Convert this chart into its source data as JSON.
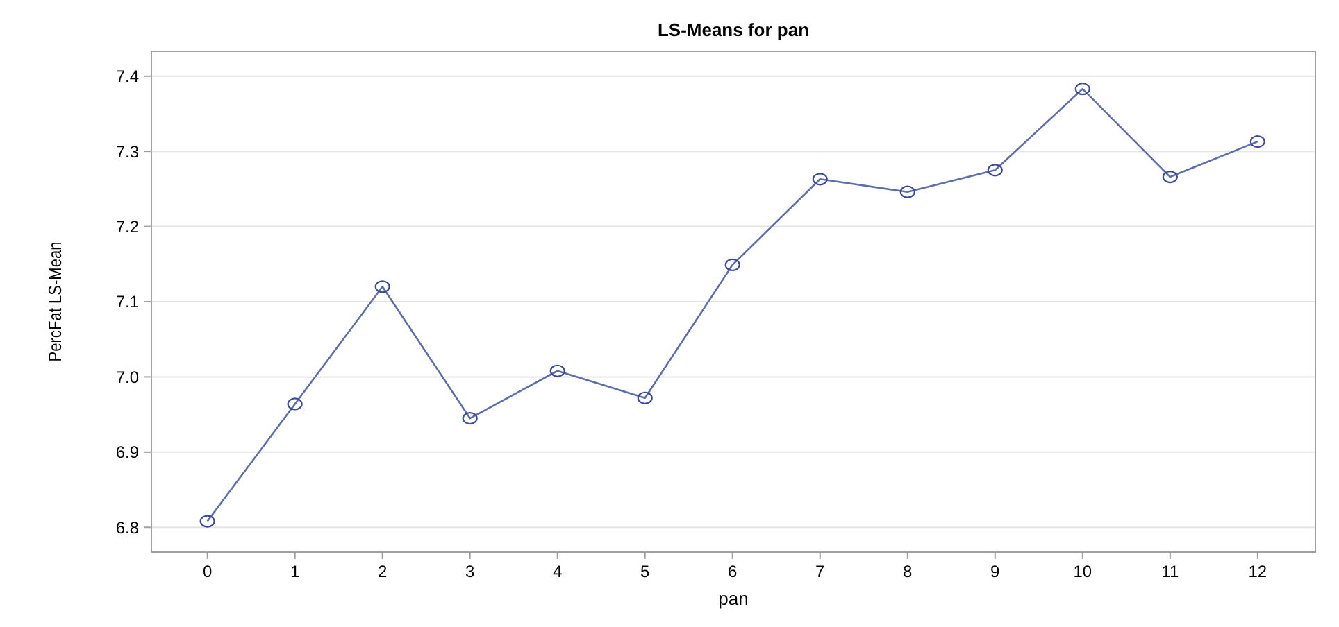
{
  "chart_data": {
    "type": "line",
    "title": "LS-Means for pan",
    "xlabel": "pan",
    "ylabel": "PercFat LS-Mean",
    "x": [
      0,
      1,
      2,
      3,
      4,
      5,
      6,
      7,
      8,
      9,
      10,
      11,
      12
    ],
    "xlim": [
      -0.64,
      12.66
    ],
    "xticks": [
      0,
      1,
      2,
      3,
      4,
      5,
      6,
      7,
      8,
      9,
      10,
      11,
      12
    ],
    "series": [
      {
        "color": "#5f6eaa",
        "values": [
          6.808,
          6.964,
          7.12,
          6.945,
          7.008,
          6.972,
          7.149,
          7.263,
          7.246,
          7.275,
          7.383,
          7.266,
          7.313
        ]
      }
    ],
    "ylim": [
      6.767,
      7.433
    ],
    "yticks": [
      {
        "value": 6.8,
        "label": "6.8"
      },
      {
        "value": 6.9,
        "label": "6.9"
      },
      {
        "value": 7.0,
        "label": "7.0"
      },
      {
        "value": 7.1,
        "label": "7.1"
      },
      {
        "value": 7.2,
        "label": "7.2"
      },
      {
        "value": 7.3,
        "label": "7.3"
      },
      {
        "value": 7.4,
        "label": "7.4"
      }
    ],
    "grid": "y",
    "marker": "circle",
    "line_style": "solid"
  }
}
